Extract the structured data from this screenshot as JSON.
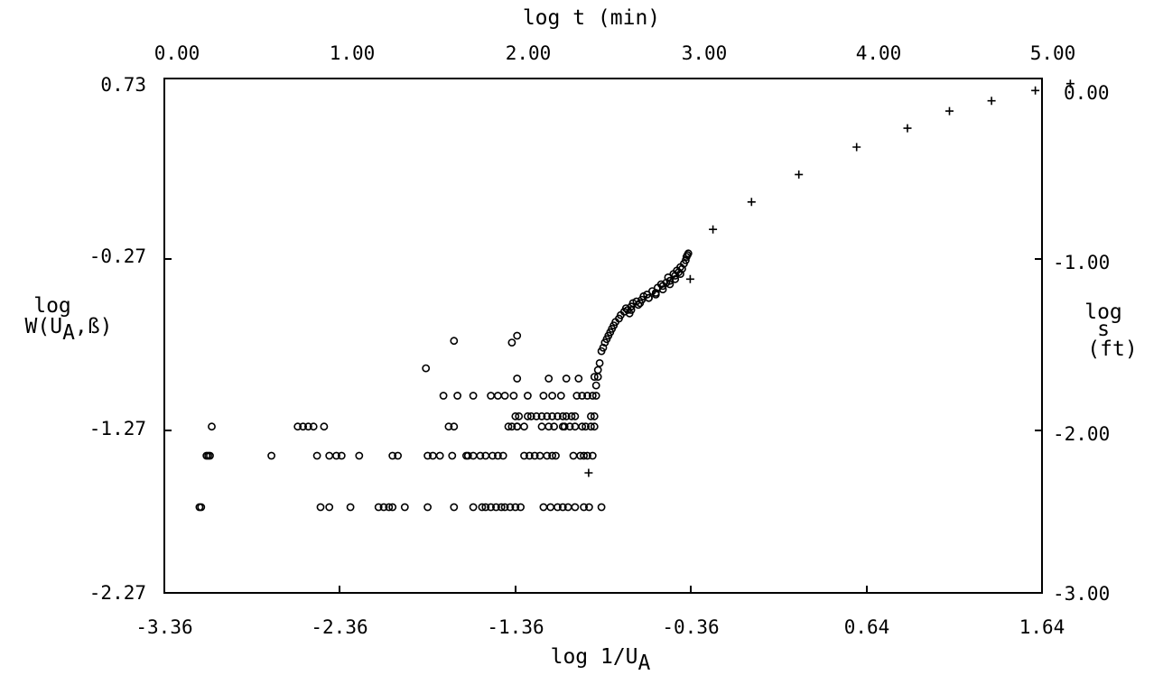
{
  "chart_data": {
    "type": "scatter",
    "title": "",
    "axes": {
      "x_bottom": {
        "label_main": "log 1/U",
        "label_sub": "A",
        "range": [
          -3.36,
          1.64
        ],
        "ticks": [
          "-3.36",
          "-2.36",
          "-1.36",
          "-0.36",
          "0.64",
          "1.64"
        ]
      },
      "x_top": {
        "label": "log t (min)",
        "range": [
          0.0,
          5.0
        ],
        "ticks": [
          "0.00",
          "1.00",
          "2.00",
          "3.00",
          "4.00",
          "5.00"
        ]
      },
      "y_left": {
        "label_line1": "log",
        "label_line2_pre": "W(U",
        "label_line2_sub": "A",
        "label_line2_post": ",ß)",
        "range": [
          -2.27,
          0.73
        ],
        "ticks": [
          "0.73",
          "-0.27",
          "-1.27",
          "-2.27"
        ]
      },
      "y_right": {
        "label_lines": [
          "log",
          "s",
          "(ft)"
        ],
        "range": [
          -3.0,
          0.0
        ],
        "ticks": [
          "0.00",
          "-1.00",
          "-2.00",
          "-3.00"
        ]
      }
    },
    "grid": false,
    "series": [
      {
        "marker": "circle",
        "x_axis": "x_bottom",
        "y_axis": "y_left",
        "points": [
          [
            -3.16,
            -1.77
          ],
          [
            -3.15,
            -1.77
          ],
          [
            -3.12,
            -1.47
          ],
          [
            -3.11,
            -1.47
          ],
          [
            -3.1,
            -1.47
          ],
          [
            -3.09,
            -1.3
          ],
          [
            -2.75,
            -1.47
          ],
          [
            -2.6,
            -1.3
          ],
          [
            -2.57,
            -1.3
          ],
          [
            -2.54,
            -1.3
          ],
          [
            -2.51,
            -1.3
          ],
          [
            -2.45,
            -1.3
          ],
          [
            -2.49,
            -1.47
          ],
          [
            -2.42,
            -1.47
          ],
          [
            -2.38,
            -1.47
          ],
          [
            -2.35,
            -1.47
          ],
          [
            -2.25,
            -1.47
          ],
          [
            -2.47,
            -1.77
          ],
          [
            -2.42,
            -1.77
          ],
          [
            -2.3,
            -1.77
          ],
          [
            -2.14,
            -1.77
          ],
          [
            -2.11,
            -1.77
          ],
          [
            -2.08,
            -1.77
          ],
          [
            -2.06,
            -1.77
          ],
          [
            -1.99,
            -1.77
          ],
          [
            -2.06,
            -1.47
          ],
          [
            -2.03,
            -1.47
          ],
          [
            -1.86,
            -1.77
          ],
          [
            -1.86,
            -1.47
          ],
          [
            -1.83,
            -1.47
          ],
          [
            -1.79,
            -1.47
          ],
          [
            -1.72,
            -1.47
          ],
          [
            -1.64,
            -1.47
          ],
          [
            -1.71,
            -1.77
          ],
          [
            -1.6,
            -1.77
          ],
          [
            -1.55,
            -1.77
          ],
          [
            -1.53,
            -1.77
          ],
          [
            -1.5,
            -1.77
          ],
          [
            -1.47,
            -1.77
          ],
          [
            -1.44,
            -1.77
          ],
          [
            -1.42,
            -1.77
          ],
          [
            -1.39,
            -1.77
          ],
          [
            -1.36,
            -1.77
          ],
          [
            -1.33,
            -1.77
          ],
          [
            -1.87,
            -0.96
          ],
          [
            -1.71,
            -0.8
          ],
          [
            -1.38,
            -0.81
          ],
          [
            -1.35,
            -0.77
          ],
          [
            -1.77,
            -1.12
          ],
          [
            -1.69,
            -1.12
          ],
          [
            -1.6,
            -1.12
          ],
          [
            -1.5,
            -1.12
          ],
          [
            -1.46,
            -1.12
          ],
          [
            -1.42,
            -1.12
          ],
          [
            -1.37,
            -1.12
          ],
          [
            -1.29,
            -1.12
          ],
          [
            -1.2,
            -1.12
          ],
          [
            -1.15,
            -1.12
          ],
          [
            -1.1,
            -1.12
          ],
          [
            -1.74,
            -1.3
          ],
          [
            -1.71,
            -1.3
          ],
          [
            -1.4,
            -1.3
          ],
          [
            -1.38,
            -1.3
          ],
          [
            -1.35,
            -1.3
          ],
          [
            -1.21,
            -1.3
          ],
          [
            -1.17,
            -1.3
          ],
          [
            -1.14,
            -1.3
          ],
          [
            -1.09,
            -1.3
          ],
          [
            -1.05,
            -1.3
          ],
          [
            -1.02,
            -1.3
          ],
          [
            -0.96,
            -1.3
          ],
          [
            -0.93,
            -1.3
          ],
          [
            -0.91,
            -1.3
          ],
          [
            -1.63,
            -1.47
          ],
          [
            -1.6,
            -1.47
          ],
          [
            -1.56,
            -1.47
          ],
          [
            -1.53,
            -1.47
          ],
          [
            -1.49,
            -1.47
          ],
          [
            -1.46,
            -1.47
          ],
          [
            -1.43,
            -1.47
          ],
          [
            -1.36,
            -1.24
          ],
          [
            -1.34,
            -1.24
          ],
          [
            -1.29,
            -1.24
          ],
          [
            -1.27,
            -1.24
          ],
          [
            -1.24,
            -1.24
          ],
          [
            -1.21,
            -1.24
          ],
          [
            -1.18,
            -1.24
          ],
          [
            -1.15,
            -1.24
          ],
          [
            -1.12,
            -1.24
          ],
          [
            -1.09,
            -1.24
          ],
          [
            -1.07,
            -1.24
          ],
          [
            -1.04,
            -1.24
          ],
          [
            -1.02,
            -1.24
          ],
          [
            -1.35,
            -1.02
          ],
          [
            -1.17,
            -1.02
          ],
          [
            -1.07,
            -1.02
          ],
          [
            -1.0,
            -1.02
          ],
          [
            -1.35,
            -1.3
          ],
          [
            -1.31,
            -1.3
          ],
          [
            -1.08,
            -1.3
          ],
          [
            -0.98,
            -1.3
          ],
          [
            -1.31,
            -1.47
          ],
          [
            -1.28,
            -1.47
          ],
          [
            -1.25,
            -1.47
          ],
          [
            -1.22,
            -1.47
          ],
          [
            -1.18,
            -1.47
          ],
          [
            -1.15,
            -1.47
          ],
          [
            -1.13,
            -1.47
          ],
          [
            -1.03,
            -1.47
          ],
          [
            -0.99,
            -1.47
          ],
          [
            -0.97,
            -1.47
          ],
          [
            -0.95,
            -1.47
          ],
          [
            -0.92,
            -1.47
          ],
          [
            -1.02,
            -1.77
          ],
          [
            -0.97,
            -1.77
          ],
          [
            -0.94,
            -1.77
          ],
          [
            -1.2,
            -1.77
          ],
          [
            -1.16,
            -1.77
          ],
          [
            -1.12,
            -1.77
          ],
          [
            -1.09,
            -1.77
          ],
          [
            -1.06,
            -1.77
          ],
          [
            -0.87,
            -1.77
          ],
          [
            -1.01,
            -1.12
          ],
          [
            -0.98,
            -1.12
          ],
          [
            -0.95,
            -1.12
          ],
          [
            -0.92,
            -1.12
          ],
          [
            -0.91,
            -1.01
          ],
          [
            -0.89,
            -1.01
          ],
          [
            -0.9,
            -1.12
          ],
          [
            -0.93,
            -1.24
          ],
          [
            -0.91,
            -1.24
          ],
          [
            -0.9,
            -1.06
          ],
          [
            -0.89,
            -0.97
          ],
          [
            -0.88,
            -0.93
          ],
          [
            -0.87,
            -0.86
          ],
          [
            -0.86,
            -0.84
          ],
          [
            -0.85,
            -0.81
          ],
          [
            -0.84,
            -0.79
          ],
          [
            -0.83,
            -0.77
          ],
          [
            -0.82,
            -0.75
          ],
          [
            -0.81,
            -0.73
          ],
          [
            -0.8,
            -0.71
          ],
          [
            -0.79,
            -0.69
          ],
          [
            -0.77,
            -0.67
          ],
          [
            -0.76,
            -0.65
          ],
          [
            -0.74,
            -0.63
          ],
          [
            -0.73,
            -0.61
          ],
          [
            -0.72,
            -0.62
          ],
          [
            -0.71,
            -0.64
          ],
          [
            -0.7,
            -0.6
          ],
          [
            -0.69,
            -0.58
          ],
          [
            -0.67,
            -0.57
          ],
          [
            -0.66,
            -0.59
          ],
          [
            -0.64,
            -0.56
          ],
          [
            -0.63,
            -0.54
          ],
          [
            -0.61,
            -0.53
          ],
          [
            -0.6,
            -0.55
          ],
          [
            -0.58,
            -0.51
          ],
          [
            -0.56,
            -0.52
          ],
          [
            -0.55,
            -0.49
          ],
          [
            -0.53,
            -0.47
          ],
          [
            -0.52,
            -0.48
          ],
          [
            -0.5,
            -0.46
          ],
          [
            -0.49,
            -0.43
          ],
          [
            -0.48,
            -0.45
          ],
          [
            -0.46,
            -0.41
          ],
          [
            -0.45,
            -0.42
          ],
          [
            -0.44,
            -0.39
          ],
          [
            -0.43,
            -0.4
          ],
          [
            -0.42,
            -0.37
          ],
          [
            -0.41,
            -0.38
          ],
          [
            -0.4,
            -0.35
          ],
          [
            -0.39,
            -0.33
          ],
          [
            -0.385,
            -0.31
          ],
          [
            -0.38,
            -0.3
          ],
          [
            -0.375,
            -0.29
          ],
          [
            -0.7,
            -0.62
          ],
          [
            -0.65,
            -0.58
          ],
          [
            -0.6,
            -0.55
          ],
          [
            -0.56,
            -0.53
          ],
          [
            -0.52,
            -0.5
          ],
          [
            -0.48,
            -0.47
          ],
          [
            -0.45,
            -0.44
          ],
          [
            -0.42,
            -0.41
          ]
        ]
      },
      {
        "marker": "plus",
        "x_axis": "x_top",
        "y_axis": "y_right",
        "points": [
          [
            2.35,
            -2.3
          ],
          [
            2.93,
            -1.17
          ],
          [
            3.06,
            -0.88
          ],
          [
            3.28,
            -0.72
          ],
          [
            3.55,
            -0.56
          ],
          [
            3.88,
            -0.4
          ],
          [
            4.17,
            -0.29
          ],
          [
            4.41,
            -0.19
          ],
          [
            4.65,
            -0.13
          ],
          [
            4.9,
            -0.07
          ],
          [
            5.1,
            -0.03
          ]
        ]
      }
    ]
  }
}
